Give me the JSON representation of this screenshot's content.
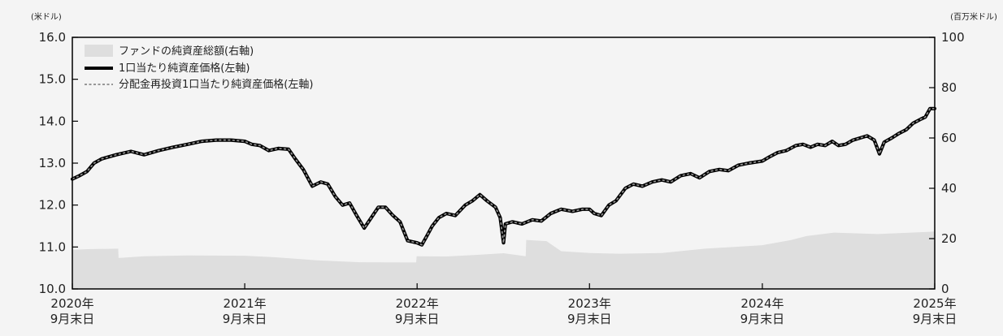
{
  "chart_data": {
    "type": "line",
    "y_left": {
      "unit": "(米ドル)",
      "range": [
        10.0,
        16.0
      ],
      "ticks": [
        "10.0",
        "11.0",
        "12.0",
        "13.0",
        "14.0",
        "15.0",
        "16.0"
      ]
    },
    "y_right": {
      "unit": "(百万米ドル)",
      "range": [
        0,
        100
      ],
      "ticks": [
        "0",
        "20",
        "40",
        "60",
        "80",
        "100"
      ]
    },
    "x_range": [
      "2020-09-30",
      "2025-09-30"
    ],
    "x_ticks": [
      {
        "date": "2020-09-30",
        "line1": "2020年",
        "line2": "9月末日"
      },
      {
        "date": "2021-09-30",
        "line1": "2021年",
        "line2": "9月末日"
      },
      {
        "date": "2022-09-30",
        "line1": "2022年",
        "line2": "9月末日"
      },
      {
        "date": "2023-09-30",
        "line1": "2023年",
        "line2": "9月末日"
      },
      {
        "date": "2024-09-30",
        "line1": "2024年",
        "line2": "9月末日"
      },
      {
        "date": "2025-09-30",
        "line1": "2025年",
        "line2": "9月末日"
      }
    ],
    "legend": [
      "ファンドの純資産総額(右軸)",
      "1口当たり純資産価格(左軸)",
      "分配金再投資1口当たり純資産価格(左軸)"
    ],
    "legend_position": "top-left",
    "colors": {
      "area": "#dedede",
      "nav_line": "#000000",
      "reinvest_line": "#9a9a9a"
    },
    "series": [
      {
        "name": "ファンドの純資産総額(右軸)",
        "axis": "right",
        "kind": "area",
        "points": [
          [
            "2020-09-30",
            15.5
          ],
          [
            "2020-11-01",
            15.8
          ],
          [
            "2021-01-05",
            16.0
          ],
          [
            "2021-01-06",
            12.3
          ],
          [
            "2021-03-01",
            13.0
          ],
          [
            "2021-06-01",
            13.3
          ],
          [
            "2021-09-30",
            13.2
          ],
          [
            "2021-12-01",
            12.6
          ],
          [
            "2022-03-01",
            11.4
          ],
          [
            "2022-06-01",
            10.6
          ],
          [
            "2022-09-28",
            10.5
          ],
          [
            "2022-09-29",
            13.0
          ],
          [
            "2022-12-01",
            12.9
          ],
          [
            "2023-02-01",
            13.5
          ],
          [
            "2023-04-01",
            14.2
          ],
          [
            "2023-05-18",
            13.0
          ],
          [
            "2023-05-19",
            19.5
          ],
          [
            "2023-07-01",
            19.0
          ],
          [
            "2023-08-01",
            15.0
          ],
          [
            "2023-10-01",
            14.3
          ],
          [
            "2023-12-01",
            14.0
          ],
          [
            "2024-03-01",
            14.3
          ],
          [
            "2024-06-01",
            16.0
          ],
          [
            "2024-09-30",
            17.4
          ],
          [
            "2024-12-01",
            19.5
          ],
          [
            "2025-01-01",
            21.0
          ],
          [
            "2025-03-01",
            22.4
          ],
          [
            "2025-06-01",
            21.8
          ],
          [
            "2025-09-30",
            22.8
          ]
        ]
      },
      {
        "name": "1口当たり純資産価格(左軸)",
        "axis": "left",
        "kind": "line",
        "points": [
          [
            "2020-09-30",
            12.62
          ],
          [
            "2020-10-15",
            12.7
          ],
          [
            "2020-10-31",
            12.8
          ],
          [
            "2020-11-15",
            13.0
          ],
          [
            "2020-12-01",
            13.1
          ],
          [
            "2021-01-01",
            13.2
          ],
          [
            "2021-02-01",
            13.28
          ],
          [
            "2021-03-01",
            13.2
          ],
          [
            "2021-04-01",
            13.3
          ],
          [
            "2021-05-01",
            13.38
          ],
          [
            "2021-06-01",
            13.45
          ],
          [
            "2021-07-01",
            13.52
          ],
          [
            "2021-08-01",
            13.55
          ],
          [
            "2021-09-01",
            13.55
          ],
          [
            "2021-09-30",
            13.52
          ],
          [
            "2021-10-15",
            13.45
          ],
          [
            "2021-11-01",
            13.42
          ],
          [
            "2021-11-20",
            13.3
          ],
          [
            "2021-12-10",
            13.35
          ],
          [
            "2022-01-01",
            13.33
          ],
          [
            "2022-01-15",
            13.1
          ],
          [
            "2022-02-01",
            12.85
          ],
          [
            "2022-02-20",
            12.45
          ],
          [
            "2022-03-10",
            12.55
          ],
          [
            "2022-03-25",
            12.5
          ],
          [
            "2022-04-10",
            12.2
          ],
          [
            "2022-04-25",
            12.0
          ],
          [
            "2022-05-10",
            12.05
          ],
          [
            "2022-05-25",
            11.75
          ],
          [
            "2022-06-10",
            11.45
          ],
          [
            "2022-06-25",
            11.7
          ],
          [
            "2022-07-10",
            11.95
          ],
          [
            "2022-07-25",
            11.95
          ],
          [
            "2022-08-10",
            11.75
          ],
          [
            "2022-08-25",
            11.6
          ],
          [
            "2022-09-10",
            11.15
          ],
          [
            "2022-09-30",
            11.1
          ],
          [
            "2022-10-10",
            11.05
          ],
          [
            "2022-10-20",
            11.25
          ],
          [
            "2022-11-01",
            11.5
          ],
          [
            "2022-11-15",
            11.7
          ],
          [
            "2022-12-01",
            11.8
          ],
          [
            "2022-12-20",
            11.75
          ],
          [
            "2023-01-10",
            12.0
          ],
          [
            "2023-01-25",
            12.1
          ],
          [
            "2023-02-10",
            12.25
          ],
          [
            "2023-02-25",
            12.1
          ],
          [
            "2023-03-15",
            11.95
          ],
          [
            "2023-03-25",
            11.7
          ],
          [
            "2023-04-01",
            11.1
          ],
          [
            "2023-04-05",
            11.55
          ],
          [
            "2023-04-20",
            11.6
          ],
          [
            "2023-05-10",
            11.55
          ],
          [
            "2023-06-01",
            11.65
          ],
          [
            "2023-06-20",
            11.62
          ],
          [
            "2023-07-10",
            11.8
          ],
          [
            "2023-08-01",
            11.9
          ],
          [
            "2023-08-25",
            11.85
          ],
          [
            "2023-09-15",
            11.9
          ],
          [
            "2023-09-30",
            11.9
          ],
          [
            "2023-10-10",
            11.8
          ],
          [
            "2023-10-25",
            11.75
          ],
          [
            "2023-11-10",
            12.0
          ],
          [
            "2023-11-25",
            12.1
          ],
          [
            "2023-12-15",
            12.4
          ],
          [
            "2024-01-01",
            12.5
          ],
          [
            "2024-01-20",
            12.45
          ],
          [
            "2024-02-10",
            12.55
          ],
          [
            "2024-03-01",
            12.6
          ],
          [
            "2024-03-20",
            12.55
          ],
          [
            "2024-04-10",
            12.7
          ],
          [
            "2024-05-01",
            12.75
          ],
          [
            "2024-05-20",
            12.65
          ],
          [
            "2024-06-10",
            12.8
          ],
          [
            "2024-07-01",
            12.85
          ],
          [
            "2024-07-20",
            12.82
          ],
          [
            "2024-08-10",
            12.95
          ],
          [
            "2024-09-01",
            13.0
          ],
          [
            "2024-09-30",
            13.05
          ],
          [
            "2024-10-15",
            13.15
          ],
          [
            "2024-11-01",
            13.25
          ],
          [
            "2024-11-20",
            13.3
          ],
          [
            "2024-12-10",
            13.42
          ],
          [
            "2024-12-25",
            13.45
          ],
          [
            "2025-01-10",
            13.38
          ],
          [
            "2025-01-25",
            13.45
          ],
          [
            "2025-02-10",
            13.42
          ],
          [
            "2025-02-25",
            13.52
          ],
          [
            "2025-03-10",
            13.42
          ],
          [
            "2025-03-25",
            13.45
          ],
          [
            "2025-04-10",
            13.55
          ],
          [
            "2025-04-25",
            13.6
          ],
          [
            "2025-05-10",
            13.65
          ],
          [
            "2025-05-25",
            13.55
          ],
          [
            "2025-06-05",
            13.22
          ],
          [
            "2025-06-15",
            13.5
          ],
          [
            "2025-07-01",
            13.6
          ],
          [
            "2025-07-15",
            13.7
          ],
          [
            "2025-08-01",
            13.8
          ],
          [
            "2025-08-15",
            13.95
          ],
          [
            "2025-09-01",
            14.05
          ],
          [
            "2025-09-10",
            14.1
          ],
          [
            "2025-09-20",
            14.3
          ],
          [
            "2025-09-30",
            14.3
          ]
        ]
      },
      {
        "name": "分配金再投資1口当たり純資産価格(左軸)",
        "axis": "left",
        "kind": "line",
        "points": [
          [
            "2020-09-30",
            12.62
          ],
          [
            "2020-10-15",
            12.7
          ],
          [
            "2020-10-31",
            12.8
          ],
          [
            "2020-11-15",
            13.0
          ],
          [
            "2020-12-01",
            13.1
          ],
          [
            "2021-01-01",
            13.2
          ],
          [
            "2021-02-01",
            13.28
          ],
          [
            "2021-03-01",
            13.2
          ],
          [
            "2021-04-01",
            13.3
          ],
          [
            "2021-05-01",
            13.38
          ],
          [
            "2021-06-01",
            13.45
          ],
          [
            "2021-07-01",
            13.52
          ],
          [
            "2021-08-01",
            13.55
          ],
          [
            "2021-09-01",
            13.55
          ],
          [
            "2021-09-30",
            13.52
          ],
          [
            "2021-10-15",
            13.45
          ],
          [
            "2021-11-01",
            13.42
          ],
          [
            "2021-11-20",
            13.3
          ],
          [
            "2021-12-10",
            13.35
          ],
          [
            "2022-01-01",
            13.33
          ],
          [
            "2022-01-15",
            13.1
          ],
          [
            "2022-02-01",
            12.85
          ],
          [
            "2022-02-20",
            12.45
          ],
          [
            "2022-03-10",
            12.55
          ],
          [
            "2022-03-25",
            12.5
          ],
          [
            "2022-04-10",
            12.2
          ],
          [
            "2022-04-25",
            12.0
          ],
          [
            "2022-05-10",
            12.05
          ],
          [
            "2022-05-25",
            11.75
          ],
          [
            "2022-06-10",
            11.45
          ],
          [
            "2022-06-25",
            11.7
          ],
          [
            "2022-07-10",
            11.95
          ],
          [
            "2022-07-25",
            11.95
          ],
          [
            "2022-08-10",
            11.75
          ],
          [
            "2022-08-25",
            11.6
          ],
          [
            "2022-09-10",
            11.15
          ],
          [
            "2022-09-30",
            11.1
          ],
          [
            "2022-10-10",
            11.05
          ],
          [
            "2022-10-20",
            11.25
          ],
          [
            "2022-11-01",
            11.5
          ],
          [
            "2022-11-15",
            11.7
          ],
          [
            "2022-12-01",
            11.8
          ],
          [
            "2022-12-20",
            11.75
          ],
          [
            "2023-01-10",
            12.0
          ],
          [
            "2023-01-25",
            12.1
          ],
          [
            "2023-02-10",
            12.25
          ],
          [
            "2023-02-25",
            12.1
          ],
          [
            "2023-03-15",
            11.95
          ],
          [
            "2023-03-25",
            11.7
          ],
          [
            "2023-04-01",
            11.1
          ],
          [
            "2023-04-05",
            11.55
          ],
          [
            "2023-04-20",
            11.6
          ],
          [
            "2023-05-10",
            11.55
          ],
          [
            "2023-06-01",
            11.65
          ],
          [
            "2023-06-20",
            11.62
          ],
          [
            "2023-07-10",
            11.8
          ],
          [
            "2023-08-01",
            11.9
          ],
          [
            "2023-08-25",
            11.85
          ],
          [
            "2023-09-15",
            11.9
          ],
          [
            "2023-09-30",
            11.9
          ],
          [
            "2023-10-10",
            11.8
          ],
          [
            "2023-10-25",
            11.75
          ],
          [
            "2023-11-10",
            12.0
          ],
          [
            "2023-11-25",
            12.1
          ],
          [
            "2023-12-15",
            12.4
          ],
          [
            "2024-01-01",
            12.5
          ],
          [
            "2024-01-20",
            12.45
          ],
          [
            "2024-02-10",
            12.55
          ],
          [
            "2024-03-01",
            12.6
          ],
          [
            "2024-03-20",
            12.55
          ],
          [
            "2024-04-10",
            12.7
          ],
          [
            "2024-05-01",
            12.75
          ],
          [
            "2024-05-20",
            12.65
          ],
          [
            "2024-06-10",
            12.8
          ],
          [
            "2024-07-01",
            12.85
          ],
          [
            "2024-07-20",
            12.82
          ],
          [
            "2024-08-10",
            12.95
          ],
          [
            "2024-09-01",
            13.0
          ],
          [
            "2024-09-30",
            13.05
          ],
          [
            "2024-10-15",
            13.15
          ],
          [
            "2024-11-01",
            13.25
          ],
          [
            "2024-11-20",
            13.3
          ],
          [
            "2024-12-10",
            13.42
          ],
          [
            "2024-12-25",
            13.45
          ],
          [
            "2025-01-10",
            13.38
          ],
          [
            "2025-01-25",
            13.45
          ],
          [
            "2025-02-10",
            13.42
          ],
          [
            "2025-02-25",
            13.52
          ],
          [
            "2025-03-10",
            13.42
          ],
          [
            "2025-03-25",
            13.45
          ],
          [
            "2025-04-10",
            13.55
          ],
          [
            "2025-04-25",
            13.6
          ],
          [
            "2025-05-10",
            13.65
          ],
          [
            "2025-05-25",
            13.55
          ],
          [
            "2025-06-05",
            13.22
          ],
          [
            "2025-06-15",
            13.5
          ],
          [
            "2025-07-01",
            13.6
          ],
          [
            "2025-07-15",
            13.7
          ],
          [
            "2025-08-01",
            13.8
          ],
          [
            "2025-08-15",
            13.95
          ],
          [
            "2025-09-01",
            14.05
          ],
          [
            "2025-09-10",
            14.1
          ],
          [
            "2025-09-20",
            14.3
          ],
          [
            "2025-09-30",
            14.3
          ]
        ]
      }
    ]
  }
}
